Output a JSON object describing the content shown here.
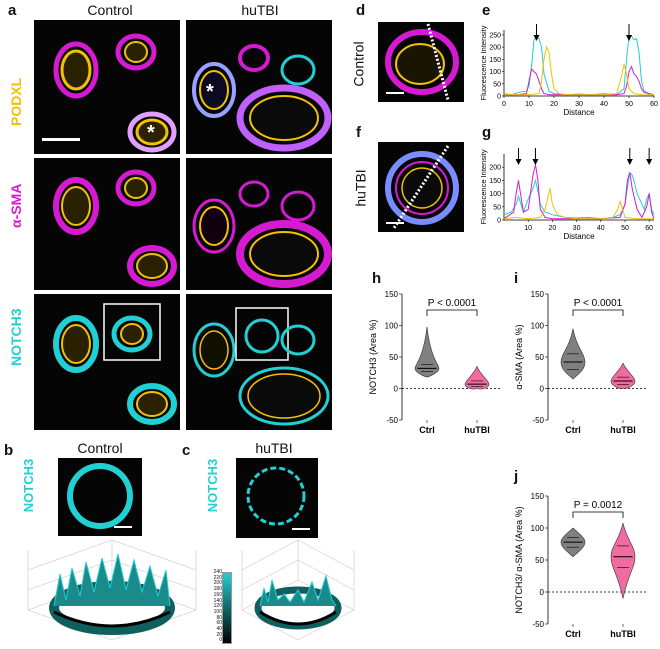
{
  "panels": {
    "a": "a",
    "b": "b",
    "c": "c",
    "d": "d",
    "e": "e",
    "f": "f",
    "g": "g",
    "h": "h",
    "i": "i",
    "j": "j"
  },
  "col_headers": {
    "control": "Control",
    "hutbi": "huTBI"
  },
  "row_labels": {
    "podxl": "PODXL",
    "asma": "α-SMA",
    "notch3": "NOTCH3"
  },
  "colors": {
    "podxl": "#f2c100",
    "asma": "#d61ad1",
    "notch3": "#22cfd3",
    "ctrl_violin": "#808080",
    "tbi_violin": "#f06ba0"
  },
  "panel_b": {
    "title": "Control",
    "stain": "NOTCH3"
  },
  "panel_c": {
    "title": "huTBI",
    "stain": "NOTCH3"
  },
  "colorbar": {
    "ticks": [
      "240",
      "220",
      "200",
      "180",
      "160",
      "140",
      "120",
      "100",
      "80",
      "60",
      "40",
      "20",
      "0"
    ]
  },
  "panel_d": {
    "label": "Control"
  },
  "panel_f": {
    "label": "huTBI"
  },
  "chart_data": [
    {
      "id": "e",
      "type": "line",
      "xlabel": "Distance",
      "ylabel": "Fluorescence Intensity",
      "xlim": [
        0,
        60
      ],
      "ylim": [
        0,
        270
      ],
      "xticks": [
        "0",
        "10",
        "20",
        "30",
        "40",
        "50",
        "60"
      ],
      "yticks": [
        "0",
        "50",
        "100",
        "150",
        "200",
        "250"
      ],
      "arrows_x": [
        13,
        50
      ],
      "series": [
        {
          "color": "#22cfd3",
          "x": [
            0,
            3,
            6,
            9,
            10,
            11,
            12,
            13,
            14,
            15,
            16,
            18,
            20,
            25,
            30,
            35,
            40,
            45,
            48,
            49,
            50,
            51,
            52,
            53,
            54,
            55,
            56,
            58,
            60
          ],
          "y": [
            10,
            5,
            15,
            20,
            40,
            120,
            230,
            240,
            235,
            200,
            90,
            20,
            10,
            5,
            8,
            5,
            10,
            5,
            30,
            150,
            240,
            245,
            230,
            235,
            180,
            60,
            20,
            10,
            5
          ]
        },
        {
          "color": "#d61ad1",
          "x": [
            0,
            5,
            9,
            10,
            11,
            12,
            13,
            14,
            15,
            16,
            18,
            25,
            35,
            45,
            48,
            49,
            50,
            51,
            52,
            53,
            54,
            55,
            56,
            58,
            60
          ],
          "y": [
            5,
            5,
            10,
            60,
            110,
            100,
            90,
            60,
            30,
            10,
            5,
            5,
            5,
            5,
            10,
            40,
            100,
            120,
            90,
            80,
            60,
            30,
            15,
            10,
            5
          ]
        },
        {
          "color": "#f2c100",
          "x": [
            0,
            5,
            10,
            14,
            15,
            16,
            17,
            18,
            19,
            20,
            22,
            25,
            30,
            35,
            40,
            45,
            47,
            48,
            49,
            50,
            52,
            55,
            60
          ],
          "y": [
            5,
            5,
            5,
            10,
            60,
            150,
            200,
            180,
            90,
            30,
            10,
            5,
            5,
            5,
            5,
            10,
            80,
            130,
            90,
            30,
            10,
            5,
            5
          ]
        }
      ]
    },
    {
      "id": "g",
      "type": "line",
      "xlabel": "Distance",
      "ylabel": "Fluorescence Intensity",
      "xlim": [
        0,
        62
      ],
      "ylim": [
        0,
        250
      ],
      "xticks": [
        "10",
        "20",
        "30",
        "40",
        "50",
        "60"
      ],
      "yticks": [
        "0",
        "50",
        "100",
        "150",
        "200"
      ],
      "arrows_x": [
        6,
        13,
        52,
        60
      ],
      "series": [
        {
          "color": "#22cfd3",
          "x": [
            0,
            3,
            5,
            6,
            7,
            8,
            10,
            12,
            13,
            14,
            15,
            17,
            20,
            25,
            30,
            35,
            40,
            45,
            48,
            50,
            51,
            52,
            53,
            54,
            55,
            56,
            57,
            58,
            59,
            60,
            61,
            62
          ],
          "y": [
            20,
            30,
            60,
            90,
            60,
            30,
            80,
            120,
            150,
            110,
            60,
            30,
            20,
            10,
            8,
            10,
            5,
            10,
            20,
            60,
            120,
            180,
            170,
            140,
            100,
            80,
            60,
            40,
            80,
            100,
            40,
            20
          ]
        },
        {
          "color": "#d61ad1",
          "x": [
            0,
            4,
            5,
            6,
            7,
            8,
            10,
            12,
            13,
            14,
            15,
            17,
            20,
            30,
            40,
            48,
            50,
            51,
            52,
            53,
            54,
            55,
            57,
            59,
            60,
            61,
            62
          ],
          "y": [
            5,
            30,
            100,
            150,
            90,
            30,
            40,
            170,
            210,
            150,
            40,
            10,
            5,
            5,
            5,
            10,
            60,
            150,
            180,
            120,
            80,
            40,
            10,
            50,
            100,
            30,
            5
          ]
        },
        {
          "color": "#f2c100",
          "x": [
            0,
            5,
            10,
            15,
            17,
            18,
            19,
            20,
            22,
            25,
            30,
            35,
            40,
            45,
            47,
            48,
            49,
            50,
            55,
            60,
            62
          ],
          "y": [
            5,
            10,
            5,
            10,
            40,
            80,
            120,
            60,
            20,
            10,
            5,
            5,
            5,
            10,
            40,
            70,
            40,
            10,
            5,
            5,
            5
          ]
        }
      ]
    },
    {
      "id": "h",
      "type": "violin",
      "ylabel": "NOTCH3 (Area %)",
      "ylim": [
        -50,
        150
      ],
      "yticks": [
        "-50",
        "0",
        "50",
        "100",
        "150"
      ],
      "categories": [
        "Ctrl",
        "huTBI"
      ],
      "annotation": "P < 0.0001",
      "series": [
        {
          "name": "Ctrl",
          "median": 32,
          "min": 18,
          "max": 98,
          "q1": 27,
          "q3": 38
        },
        {
          "name": "huTBI",
          "median": 7,
          "min": 0,
          "max": 35,
          "q1": 3,
          "q3": 12
        }
      ]
    },
    {
      "id": "i",
      "type": "violin",
      "ylabel": "α-SMA (Area %)",
      "ylim": [
        -50,
        150
      ],
      "yticks": [
        "-50",
        "0",
        "50",
        "100",
        "150"
      ],
      "categories": [
        "Ctrl",
        "huTBI"
      ],
      "annotation": "P < 0.0001",
      "series": [
        {
          "name": "Ctrl",
          "median": 42,
          "min": 15,
          "max": 95,
          "q1": 30,
          "q3": 55
        },
        {
          "name": "huTBI",
          "median": 12,
          "min": 0,
          "max": 40,
          "q1": 6,
          "q3": 18
        }
      ]
    },
    {
      "id": "j",
      "type": "violin",
      "ylabel": "NOTCH3/ α-SMA (Area %)",
      "ylim": [
        -50,
        150
      ],
      "yticks": [
        "-50",
        "0",
        "50",
        "100",
        "150"
      ],
      "categories": [
        "Ctrl",
        "huTBI"
      ],
      "annotation": "P = 0.0012",
      "series": [
        {
          "name": "Ctrl",
          "median": 78,
          "min": 55,
          "max": 100,
          "q1": 70,
          "q3": 85
        },
        {
          "name": "huTBI",
          "median": 55,
          "min": -10,
          "max": 108,
          "q1": 38,
          "q3": 72
        }
      ]
    }
  ]
}
